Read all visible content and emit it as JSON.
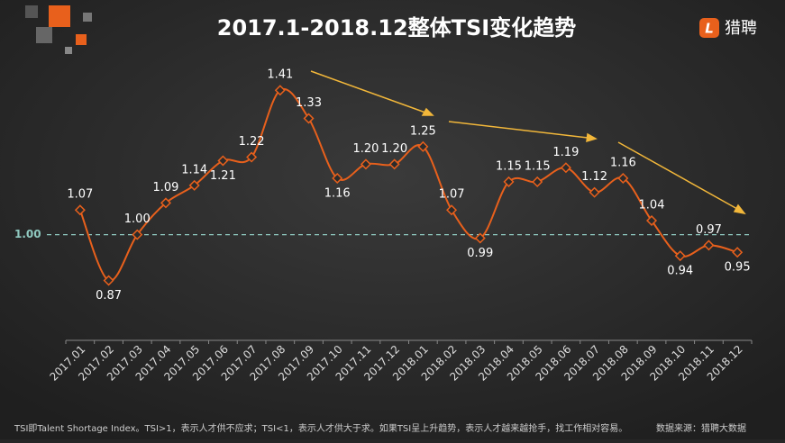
{
  "chart_data": {
    "type": "line",
    "title": "2017.1-2018.12整体TSI变化趋势",
    "categories": [
      "2017.01",
      "2017.02",
      "2017.03",
      "2017.04",
      "2017.05",
      "2017.06",
      "2017.07",
      "2017.08",
      "2017.09",
      "2017.10",
      "2017.11",
      "2017.12",
      "2018.01",
      "2018.02",
      "2018.03",
      "2018.04",
      "2018.05",
      "2018.06",
      "2018.07",
      "2018.08",
      "2018.09",
      "2018.10",
      "2018.11",
      "2018.12"
    ],
    "values": [
      1.07,
      0.87,
      1.0,
      1.09,
      1.14,
      1.21,
      1.22,
      1.41,
      1.33,
      1.16,
      1.2,
      1.2,
      1.25,
      1.07,
      0.99,
      1.15,
      1.15,
      1.19,
      1.12,
      1.16,
      1.04,
      0.94,
      0.97,
      0.95
    ],
    "value_labels": [
      "1.07",
      "0.87",
      "1.00",
      "1.09",
      "1.14",
      "1.21",
      "1.22",
      "1.41",
      "1.33",
      "1.16",
      "1.20",
      "1.20",
      "1.25",
      "1.07",
      "0.99",
      "1.15",
      "1.15",
      "1.19",
      "1.12",
      "1.16",
      "1.04",
      "0.94",
      "0.97",
      "0.95"
    ],
    "color": "#e8601c",
    "ylim": [
      0.7,
      1.5
    ],
    "reference_line": {
      "value": 1,
      "label": "1.00",
      "color": "#8fc9c0"
    },
    "annotation": "TSI即Talent Shortage Index。TSI>1，表示人才供不应求；TSI<1，表示人才供大于求。如果TSI呈上升趋势，表示人才越来越抢手，找工作相对容易。",
    "source": "数据来源：猎聘大数据",
    "logo": "猎聘",
    "logo_icon": "L"
  }
}
